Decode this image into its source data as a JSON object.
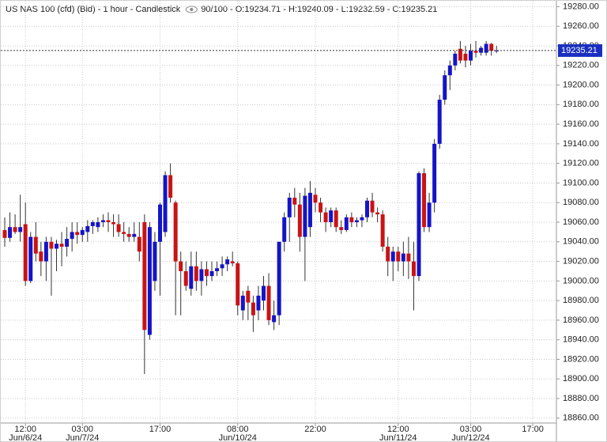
{
  "chart_data": {
    "type": "candlestick",
    "title": "US NAS 100 (cfd) (Bid) - 1 hour - Candlestick",
    "readout": "90/100 - O:19234.71 - H:19240.09 - L:19232.59 - C:19235.21",
    "last_price": 19235.21,
    "up_color": "#1414c8",
    "down_color": "#c81414",
    "grid": true,
    "ylim": [
      18855,
      19286
    ],
    "yticks": [
      {
        "value": 18860,
        "label": "18860.00"
      },
      {
        "value": 18880,
        "label": "18880.00"
      },
      {
        "value": 18900,
        "label": "18900.00"
      },
      {
        "value": 18920,
        "label": "18920.00"
      },
      {
        "value": 18940,
        "label": "18940.00"
      },
      {
        "value": 18960,
        "label": "18960.00"
      },
      {
        "value": 18980,
        "label": "18980.00"
      },
      {
        "value": 19000,
        "label": "19000.00"
      },
      {
        "value": 19020,
        "label": "19020.00"
      },
      {
        "value": 19040,
        "label": "19040.00"
      },
      {
        "value": 19060,
        "label": "19060.00"
      },
      {
        "value": 19080,
        "label": "19080.00"
      },
      {
        "value": 19100,
        "label": "19100.00"
      },
      {
        "value": 19120,
        "label": "19120.00"
      },
      {
        "value": 19140,
        "label": "19140.00"
      },
      {
        "value": 19160,
        "label": "19160.00"
      },
      {
        "value": 19180,
        "label": "19180.00"
      },
      {
        "value": 19200,
        "label": "19200.00"
      },
      {
        "value": 19220,
        "label": "19220.00"
      },
      {
        "value": 19240,
        "label": "19240.00"
      },
      {
        "value": 19260,
        "label": "19260.00"
      },
      {
        "value": 19280,
        "label": "19280.00"
      }
    ],
    "categories": [
      null,
      null,
      null,
      null,
      "12:00",
      null,
      null,
      null,
      null,
      null,
      null,
      null,
      null,
      null,
      null,
      "03:00",
      null,
      null,
      null,
      null,
      null,
      null,
      null,
      null,
      null,
      null,
      null,
      null,
      null,
      null,
      "17:00",
      null,
      null,
      null,
      null,
      null,
      null,
      null,
      null,
      null,
      null,
      null,
      null,
      null,
      null,
      "08:00",
      null,
      null,
      null,
      null,
      null,
      null,
      null,
      null,
      null,
      null,
      null,
      null,
      null,
      null,
      "22:00",
      null,
      null,
      null,
      null,
      null,
      null,
      null,
      null,
      null,
      null,
      null,
      null,
      null,
      null,
      null,
      "12:00",
      null,
      null,
      null,
      null,
      null,
      null,
      null,
      null,
      null,
      null,
      null,
      null,
      null,
      "03:00",
      null,
      null,
      null,
      null,
      null,
      null,
      null,
      null,
      null,
      null,
      null,
      "17:00"
    ],
    "dates": [
      null,
      null,
      null,
      null,
      "Jun/6/24",
      null,
      null,
      null,
      null,
      null,
      null,
      null,
      null,
      null,
      null,
      "Jun/7/24",
      null,
      null,
      null,
      null,
      null,
      null,
      null,
      null,
      null,
      null,
      null,
      null,
      null,
      null,
      null,
      null,
      null,
      null,
      null,
      null,
      null,
      null,
      null,
      null,
      null,
      null,
      null,
      null,
      null,
      "Jun/10/24",
      null,
      null,
      null,
      null,
      null,
      null,
      null,
      null,
      null,
      null,
      null,
      null,
      null,
      null,
      null,
      null,
      null,
      null,
      null,
      null,
      null,
      null,
      null,
      null,
      null,
      null,
      null,
      null,
      null,
      null,
      "Jun/11/24",
      null,
      null,
      null,
      null,
      null,
      null,
      null,
      null,
      null,
      null,
      null,
      null,
      null,
      "Jun/12/24",
      null,
      null,
      null,
      null,
      null,
      null,
      null,
      null,
      null,
      null,
      null,
      null
    ],
    "open": [
      19052,
      19044,
      19055,
      19050,
      19058,
      19000,
      19045,
      19030,
      19020,
      19040,
      19033,
      19038,
      19035,
      19043,
      19050,
      19047,
      19050,
      19056,
      19055,
      19060,
      19062,
      19060,
      19058,
      19050,
      19048,
      19045,
      19045,
      19060,
      18945,
      19000,
      19040,
      19050,
      19108,
      19080,
      19020,
      19010,
      18992,
      19015,
      19000,
      19012,
      19005,
      19010,
      19013,
      19017,
      19020,
      19018,
      18970,
      18990,
      18978,
      18970,
      18980,
      18995,
      18958,
      18965,
      19040,
      19065,
      19085,
      19078,
      19045,
      19055,
      19088,
      19080,
      19070,
      19060,
      19072,
      19055,
      19052,
      19065,
      19060,
      19062,
      19065,
      19082,
      19070,
      19068,
      19035,
      19020,
      19030,
      19020,
      19028,
      19020,
      19005,
      19110,
      19055,
      19080,
      19140,
      19185,
      19210,
      19220,
      19237,
      19232,
      19225,
      19235,
      19233,
      19233,
      19242,
      19234.71,
      null,
      null,
      null,
      null,
      null,
      null,
      null
    ],
    "high": [
      19065,
      19070,
      19068,
      19088,
      19080,
      19050,
      19060,
      19040,
      19045,
      19045,
      19042,
      19050,
      19055,
      19060,
      19060,
      19055,
      19062,
      19062,
      19065,
      19068,
      19070,
      19068,
      19068,
      19060,
      19055,
      19060,
      19060,
      19068,
      19060,
      19050,
      19080,
      19112,
      19120,
      19082,
      19030,
      19020,
      19030,
      19030,
      19020,
      19020,
      19020,
      19020,
      19025,
      19025,
      19030,
      19020,
      18990,
      18995,
      18985,
      18995,
      19005,
      19008,
      18980,
      19040,
      19070,
      19090,
      19095,
      19090,
      19095,
      19102,
      19095,
      19085,
      19075,
      19075,
      19075,
      19062,
      19068,
      19070,
      19065,
      19068,
      19085,
      19090,
      19075,
      19072,
      19045,
      19035,
      19035,
      19040,
      19045,
      19040,
      19112,
      19115,
      19090,
      19145,
      19190,
      19215,
      19225,
      19235,
      19245,
      19240,
      19242,
      19245,
      19240,
      19245,
      19243,
      19240.09,
      null,
      null,
      null,
      null,
      null,
      null,
      null
    ],
    "low": [
      19035,
      19040,
      19048,
      19040,
      18995,
      18998,
      19020,
      19005,
      19000,
      18985,
      19010,
      19015,
      19025,
      19030,
      19038,
      19040,
      19040,
      19048,
      19050,
      19055,
      19050,
      19045,
      19045,
      19040,
      19040,
      19040,
      19020,
      18905,
      18940,
      18990,
      18985,
      19045,
      19080,
      18965,
      18965,
      18990,
      18985,
      18990,
      18985,
      18995,
      19000,
      19005,
      19005,
      19010,
      19015,
      18965,
      18960,
      18960,
      18948,
      18960,
      18970,
      18955,
      18950,
      18955,
      19030,
      19040,
      19065,
      19030,
      19000,
      19045,
      19070,
      19060,
      19050,
      19055,
      19050,
      19048,
      19050,
      19055,
      19055,
      19055,
      19060,
      19065,
      19060,
      19030,
      19005,
      19000,
      19010,
      19005,
      19002,
      18970,
      19000,
      19050,
      19050,
      19070,
      19135,
      19180,
      19195,
      19215,
      19222,
      19218,
      19220,
      19228,
      19230,
      19230,
      19230,
      19232.59,
      null,
      null,
      null,
      null,
      null,
      null,
      null
    ],
    "close": [
      19044,
      19055,
      19050,
      19055,
      19000,
      19045,
      19028,
      19020,
      19040,
      19033,
      19038,
      19035,
      19043,
      19050,
      19047,
      19052,
      19056,
      19060,
      19060,
      19062,
      19060,
      19058,
      19050,
      19048,
      19045,
      19048,
      19030,
      18950,
      19055,
      19040,
      19078,
      19108,
      19085,
      19020,
      19010,
      18995,
      19015,
      19000,
      19012,
      19005,
      19010,
      19013,
      19017,
      19022,
      19018,
      18975,
      18985,
      18978,
      18965,
      18985,
      18995,
      18960,
      18965,
      19040,
      19065,
      19085,
      19078,
      19045,
      19087,
      19090,
      19080,
      19070,
      19060,
      19072,
      19055,
      19052,
      19065,
      19060,
      19062,
      19065,
      19082,
      19070,
      19068,
      19035,
      19020,
      19030,
      19020,
      19028,
      19020,
      19005,
      19110,
      19055,
      19080,
      19140,
      19185,
      19210,
      19220,
      19232,
      19225,
      19225,
      19235,
      19233,
      19238,
      19242,
      19235,
      19235.21,
      null,
      null,
      null,
      null,
      null,
      null,
      null
    ]
  }
}
